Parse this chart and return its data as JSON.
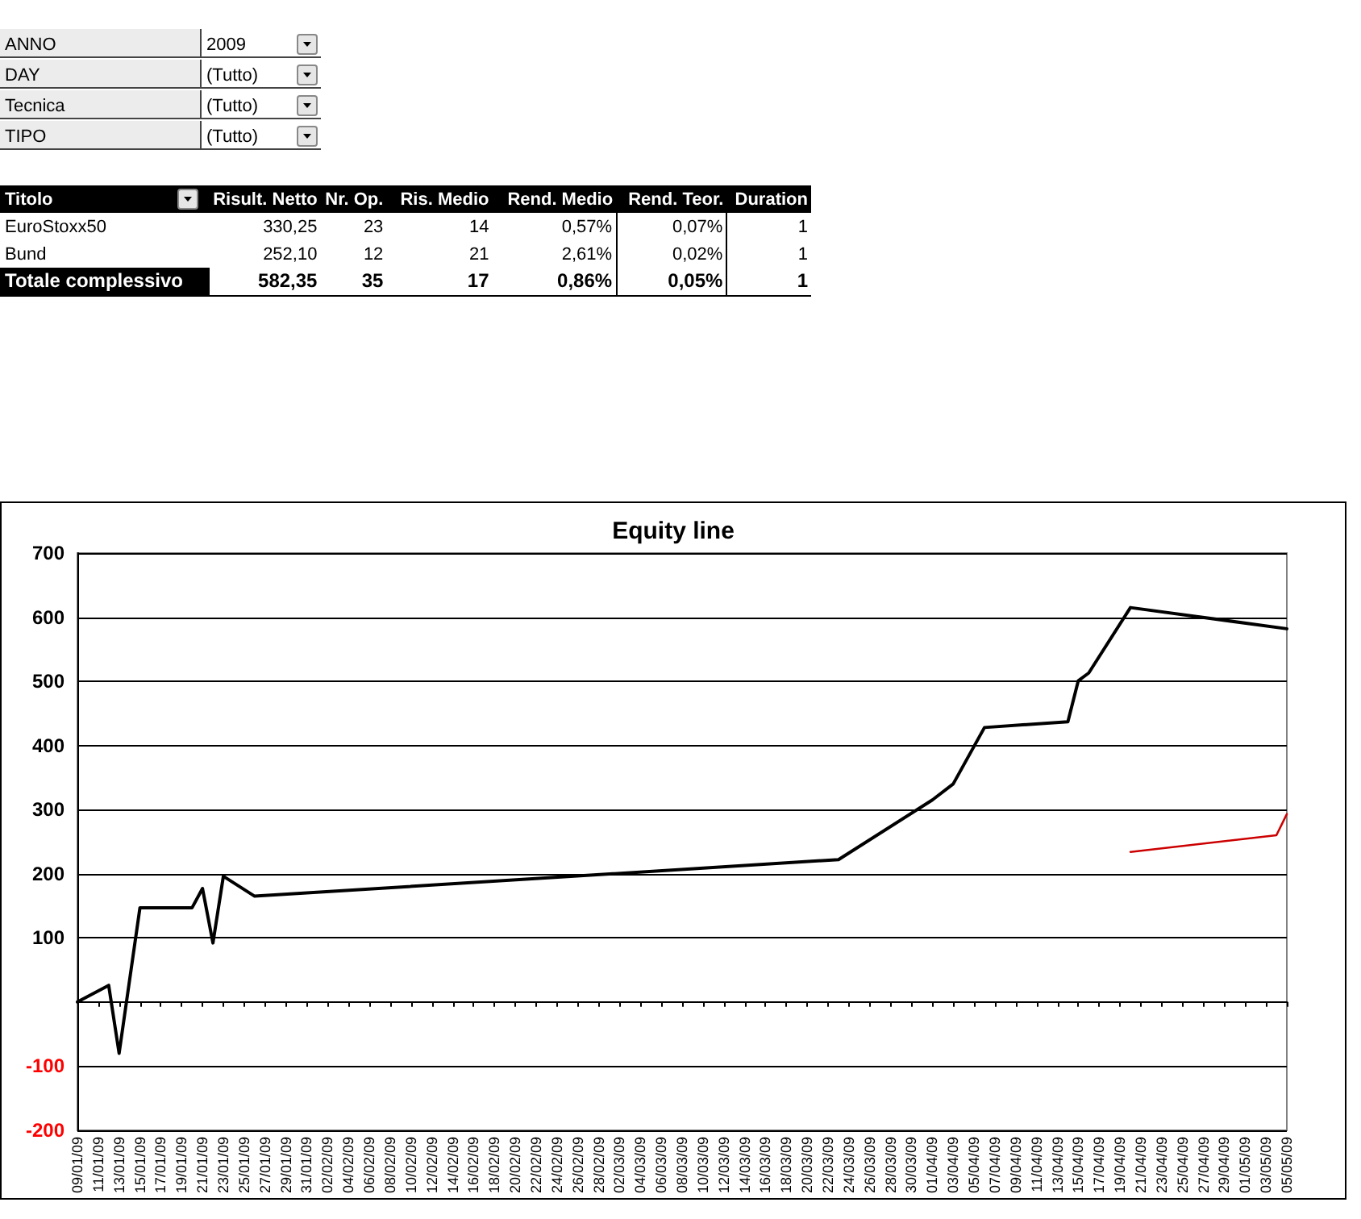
{
  "chart_data": [
    {
      "type": "other",
      "annotations": [
        "ANNO",
        "2009",
        "DAY",
        "(Tutto)",
        "Tecnica",
        "(Tutto)",
        "TIPO",
        "(Tutto)",
        "Titolo",
        "Risult. Netto",
        "Nr. Op.",
        "Ris. Medio",
        "Rend. Medio",
        "Rend. Teor.",
        "Duration",
        "EuroStoxx50",
        "330,25",
        "23",
        "14",
        "0,57%",
        "0,07%",
        "1",
        "Bund",
        "252,10",
        "12",
        "21",
        "2,61%",
        "0,02%",
        "1",
        "Totale complessivo",
        "582,35",
        "35",
        "17",
        "0,86%",
        "0,05%",
        "1"
      ]
    },
    {
      "type": "line",
      "title": "Equity line",
      "grid": "y",
      "xlim": [
        "2009-01-09",
        "2009-05-05"
      ],
      "xticks": [
        {
          "value": "2009-01-09",
          "label": "09/01/09"
        },
        {
          "value": "2009-01-11",
          "label": "11/01/09"
        },
        {
          "value": "2009-01-13",
          "label": "13/01/09"
        },
        {
          "value": "2009-01-15",
          "label": "15/01/09"
        },
        {
          "value": "2009-01-17",
          "label": "17/01/09"
        },
        {
          "value": "2009-01-19",
          "label": "19/01/09"
        },
        {
          "value": "2009-01-21",
          "label": "21/01/09"
        },
        {
          "value": "2009-01-23",
          "label": "23/01/09"
        },
        {
          "value": "2009-01-25",
          "label": "25/01/09"
        },
        {
          "value": "2009-01-27",
          "label": "27/01/09"
        },
        {
          "value": "2009-01-29",
          "label": "29/01/09"
        },
        {
          "value": "2009-01-31",
          "label": "31/01/09"
        },
        {
          "value": "2009-02-02",
          "label": "02/02/09"
        },
        {
          "value": "2009-02-04",
          "label": "04/02/09"
        },
        {
          "value": "2009-02-06",
          "label": "06/02/09"
        },
        {
          "value": "2009-02-08",
          "label": "08/02/09"
        },
        {
          "value": "2009-02-10",
          "label": "10/02/09"
        },
        {
          "value": "2009-02-12",
          "label": "12/02/09"
        },
        {
          "value": "2009-02-14",
          "label": "14/02/09"
        },
        {
          "value": "2009-02-16",
          "label": "16/02/09"
        },
        {
          "value": "2009-02-18",
          "label": "18/02/09"
        },
        {
          "value": "2009-02-20",
          "label": "20/02/09"
        },
        {
          "value": "2009-02-22",
          "label": "22/02/09"
        },
        {
          "value": "2009-02-24",
          "label": "24/02/09"
        },
        {
          "value": "2009-02-26",
          "label": "26/02/09"
        },
        {
          "value": "2009-02-28",
          "label": "28/02/09"
        },
        {
          "value": "2009-03-02",
          "label": "02/03/09"
        },
        {
          "value": "2009-03-04",
          "label": "04/03/09"
        },
        {
          "value": "2009-03-06",
          "label": "06/03/09"
        },
        {
          "value": "2009-03-08",
          "label": "08/03/09"
        },
        {
          "value": "2009-03-10",
          "label": "10/03/09"
        },
        {
          "value": "2009-03-12",
          "label": "12/03/09"
        },
        {
          "value": "2009-03-14",
          "label": "14/03/09"
        },
        {
          "value": "2009-03-16",
          "label": "16/03/09"
        },
        {
          "value": "2009-03-18",
          "label": "18/03/09"
        },
        {
          "value": "2009-03-20",
          "label": "20/03/09"
        },
        {
          "value": "2009-03-22",
          "label": "22/03/09"
        },
        {
          "value": "2009-03-24",
          "label": "24/03/09"
        },
        {
          "value": "2009-03-26",
          "label": "26/03/09"
        },
        {
          "value": "2009-03-28",
          "label": "28/03/09"
        },
        {
          "value": "2009-03-30",
          "label": "30/03/09"
        },
        {
          "value": "2009-04-01",
          "label": "01/04/09"
        },
        {
          "value": "2009-04-03",
          "label": "03/04/09"
        },
        {
          "value": "2009-04-05",
          "label": "05/04/09"
        },
        {
          "value": "2009-04-07",
          "label": "07/04/09"
        },
        {
          "value": "2009-04-09",
          "label": "09/04/09"
        },
        {
          "value": "2009-04-11",
          "label": "11/04/09"
        },
        {
          "value": "2009-04-13",
          "label": "13/04/09"
        },
        {
          "value": "2009-04-15",
          "label": "15/04/09"
        },
        {
          "value": "2009-04-17",
          "label": "17/04/09"
        },
        {
          "value": "2009-04-19",
          "label": "19/04/09"
        },
        {
          "value": "2009-04-21",
          "label": "21/04/09"
        },
        {
          "value": "2009-04-23",
          "label": "23/04/09"
        },
        {
          "value": "2009-04-25",
          "label": "25/04/09"
        },
        {
          "value": "2009-04-27",
          "label": "27/04/09"
        },
        {
          "value": "2009-04-29",
          "label": "29/04/09"
        },
        {
          "value": "2009-05-01",
          "label": "01/05/09"
        },
        {
          "value": "2009-05-03",
          "label": "03/05/09"
        },
        {
          "value": "2009-05-05",
          "label": "05/05/09"
        }
      ],
      "ylim": [
        -200,
        700
      ],
      "yticks": [
        -200,
        -100,
        {
          "value": 0,
          "label": null
        },
        100,
        200,
        300,
        400,
        500,
        600,
        700
      ],
      "series": [
        {
          "color": "#000000",
          "x": [
            "2009-01-09",
            "2009-01-12",
            "2009-01-13",
            "2009-01-15",
            "2009-01-20",
            "2009-01-21",
            "2009-01-22",
            "2009-01-23",
            "2009-01-26",
            "2009-03-23",
            "2009-04-01",
            "2009-04-03",
            "2009-04-06",
            "2009-04-14",
            "2009-04-15",
            "2009-04-16",
            "2009-04-20",
            "2009-05-05"
          ],
          "values": [
            0,
            26,
            -80,
            147,
            147,
            177,
            92,
            196,
            165,
            222,
            315,
            340,
            428,
            437,
            501,
            513,
            615,
            582
          ]
        },
        {
          "color": "#cc0000",
          "x": [
            "2009-04-20",
            "2009-05-04",
            "2009-05-05"
          ],
          "values": [
            234,
            260,
            293
          ]
        }
      ]
    }
  ]
}
